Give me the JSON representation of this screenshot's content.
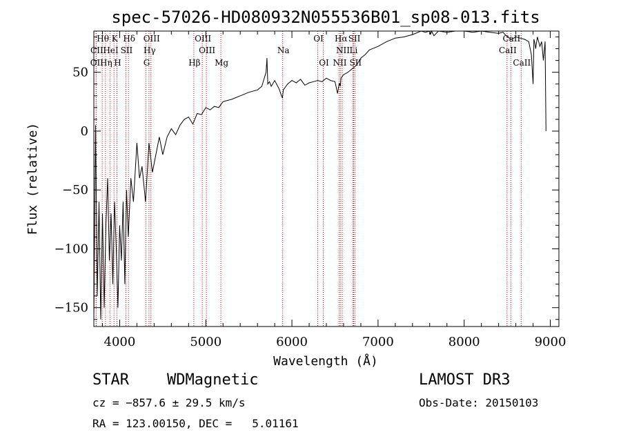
{
  "chart_data": {
    "type": "line",
    "title": "spec-57026-HD080932N055536B01_sp08-013.fits",
    "xlabel": "Wavelength (Å)",
    "ylabel": "Flux (relative)",
    "xlim": [
      3700,
      9100
    ],
    "ylim": [
      -166,
      85
    ],
    "xticks": [
      4000,
      5000,
      6000,
      7000,
      8000,
      9000
    ],
    "yticks": [
      50,
      0,
      -50,
      -100,
      -150
    ],
    "ytick_labels": [
      "50",
      "0",
      "−50",
      "−100",
      "−150"
    ],
    "series": [
      {
        "x": [
          3700,
          3720,
          3740,
          3760,
          3780,
          3800,
          3820,
          3840,
          3860,
          3880,
          3900,
          3920,
          3940,
          3960,
          3980,
          4000,
          4020,
          4040,
          4060,
          4080,
          4100,
          4130,
          4160,
          4200,
          4230,
          4260,
          4300,
          4340,
          4380,
          4420,
          4460,
          4500,
          4550,
          4600,
          4650,
          4700,
          4750,
          4800,
          4850,
          4900,
          4950,
          5000,
          5050,
          5100,
          5150,
          5200,
          5300,
          5400,
          5500,
          5600,
          5650,
          5700,
          5710,
          5720,
          5740,
          5760,
          5800,
          5850,
          5890,
          5900,
          5910,
          5950,
          6000,
          6050,
          6100,
          6150,
          6200,
          6250,
          6300,
          6350,
          6400,
          6450,
          6500,
          6530,
          6550,
          6562,
          6570,
          6600,
          6650,
          6700,
          6750,
          6800,
          6850,
          6900,
          7000,
          7100,
          7200,
          7300,
          7400,
          7500,
          7550,
          7600,
          7610,
          7620,
          7650,
          7700,
          7800,
          7900,
          8000,
          8100,
          8200,
          8300,
          8400,
          8450,
          8500,
          8550,
          8600,
          8650,
          8700,
          8750,
          8780,
          8800,
          8810,
          8820,
          8830,
          8850,
          8880,
          8900,
          8920,
          8940,
          8950
        ],
        "y": [
          -160,
          5,
          -140,
          -60,
          -160,
          -70,
          -150,
          -80,
          -40,
          -110,
          -70,
          -130,
          -60,
          -100,
          -150,
          -80,
          -110,
          -60,
          -130,
          -50,
          -90,
          -40,
          -60,
          -10,
          -40,
          -30,
          -60,
          -10,
          -35,
          -20,
          -5,
          -20,
          -5,
          2,
          -3,
          5,
          10,
          12,
          6,
          15,
          14,
          20,
          18,
          21,
          20,
          25,
          27,
          30,
          33,
          35,
          38,
          50,
          62,
          40,
          42,
          38,
          43,
          36,
          28,
          35,
          36,
          40,
          43,
          41,
          44,
          39,
          41,
          42,
          43,
          42,
          45,
          43,
          42,
          32,
          41,
          38,
          45,
          48,
          50,
          53,
          56,
          62,
          65,
          69,
          72,
          76,
          79,
          80,
          82,
          85,
          84,
          88,
          82,
          85,
          81,
          86,
          84,
          85,
          85,
          84,
          87,
          84,
          83,
          84,
          80,
          78,
          80,
          79,
          78,
          76,
          65,
          40,
          78,
          75,
          70,
          80,
          72,
          76,
          60,
          76,
          0
        ]
      }
    ],
    "line_marks": [
      {
        "name": "Hθ",
        "wavelength": 3797,
        "row": 0
      },
      {
        "name": "K",
        "wavelength": 3934,
        "row": 0
      },
      {
        "name": "Hδ",
        "wavelength": 4102,
        "row": 0
      },
      {
        "name": "OIII",
        "wavelength": 4363,
        "row": 0
      },
      {
        "name": "OIII",
        "wavelength": 4959,
        "row": 0
      },
      {
        "name": "OI",
        "wavelength": 6300,
        "row": 0
      },
      {
        "name": "Hα",
        "wavelength": 6563,
        "row": 0
      },
      {
        "name": "SII",
        "wavelength": 6717,
        "row": 0
      },
      {
        "name": "CaII",
        "wavelength": 8542,
        "row": 0
      },
      {
        "name": "CII",
        "wavelength": 3727,
        "row": 1
      },
      {
        "name": "HeI",
        "wavelength": 3889,
        "row": 1
      },
      {
        "name": "SII",
        "wavelength": 4072,
        "row": 1
      },
      {
        "name": "Hγ",
        "wavelength": 4340,
        "row": 1
      },
      {
        "name": "OIII",
        "wavelength": 5007,
        "row": 1
      },
      {
        "name": "NII",
        "wavelength": 6584,
        "row": 1
      },
      {
        "name": "Li",
        "wavelength": 6708,
        "row": 1
      },
      {
        "name": "CaII",
        "wavelength": 8498,
        "row": 1
      },
      {
        "name": "OII",
        "wavelength": 3727,
        "row": 2
      },
      {
        "name": "Hη",
        "wavelength": 3835,
        "row": 2
      },
      {
        "name": "H",
        "wavelength": 3968,
        "row": 2
      },
      {
        "name": "G",
        "wavelength": 4305,
        "row": 2
      },
      {
        "name": "Hβ",
        "wavelength": 4861,
        "row": 2
      },
      {
        "name": "Mg",
        "wavelength": 5175,
        "row": 2
      },
      {
        "name": "Na",
        "wavelength": 5893,
        "row": 1
      },
      {
        "name": "OI",
        "wavelength": 6364,
        "row": 2
      },
      {
        "name": "NII",
        "wavelength": 6548,
        "row": 2
      },
      {
        "name": "SII",
        "wavelength": 6731,
        "row": 2
      },
      {
        "name": "CaII",
        "wavelength": 8662,
        "row": 2
      }
    ],
    "line_color": "#cc0000"
  },
  "info": {
    "object_class": "STAR",
    "subclass": "WDMagnetic",
    "survey": "LAMOST DR3",
    "cz": "cz = −857.6 ± 29.5 km/s",
    "obs_date": "Obs-Date: 20150103",
    "coords": "RA = 123.00150, DEC =   5.01161"
  }
}
